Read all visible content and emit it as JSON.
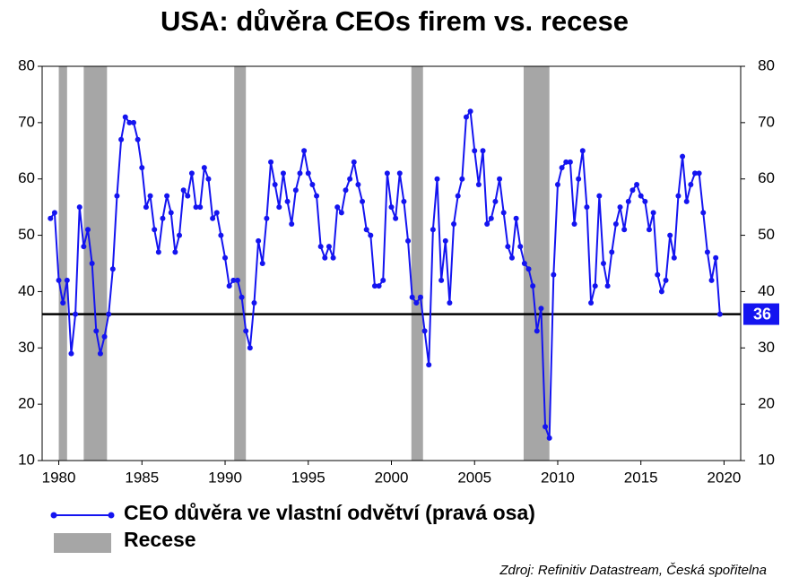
{
  "chart_data": {
    "type": "line",
    "title": "USA: důvěra CEOs firem vs. recese",
    "x": [
      1979.5,
      1979.75,
      1980,
      1980.25,
      1980.5,
      1980.75,
      1981,
      1981.25,
      1981.5,
      1981.75,
      1982,
      1982.25,
      1982.5,
      1982.75,
      1983,
      1983.25,
      1983.5,
      1983.75,
      1984,
      1984.25,
      1984.5,
      1984.75,
      1985,
      1985.25,
      1985.5,
      1985.75,
      1986,
      1986.25,
      1986.5,
      1986.75,
      1987,
      1987.25,
      1987.5,
      1987.75,
      1988,
      1988.25,
      1988.5,
      1988.75,
      1989,
      1989.25,
      1989.5,
      1989.75,
      1990,
      1990.25,
      1990.5,
      1990.75,
      1991,
      1991.25,
      1991.5,
      1991.75,
      1992,
      1992.25,
      1992.5,
      1992.75,
      1993,
      1993.25,
      1993.5,
      1993.75,
      1994,
      1994.25,
      1994.5,
      1994.75,
      1995,
      1995.25,
      1995.5,
      1995.75,
      1996,
      1996.25,
      1996.5,
      1996.75,
      1997,
      1997.25,
      1997.5,
      1997.75,
      1998,
      1998.25,
      1998.5,
      1998.75,
      1999,
      1999.25,
      1999.5,
      1999.75,
      2000,
      2000.25,
      2000.5,
      2000.75,
      2001,
      2001.25,
      2001.5,
      2001.75,
      2002,
      2002.25,
      2002.5,
      2002.75,
      2003,
      2003.25,
      2003.5,
      2003.75,
      2004,
      2004.25,
      2004.5,
      2004.75,
      2005,
      2005.25,
      2005.5,
      2005.75,
      2006,
      2006.25,
      2006.5,
      2006.75,
      2007,
      2007.25,
      2007.5,
      2007.75,
      2008,
      2008.25,
      2008.5,
      2008.75,
      2009,
      2009.25,
      2009.5,
      2009.75,
      2010,
      2010.25,
      2010.5,
      2010.75,
      2011,
      2011.25,
      2011.5,
      2011.75,
      2012,
      2012.25,
      2012.5,
      2012.75,
      2013,
      2013.25,
      2013.5,
      2013.75,
      2014,
      2014.25,
      2014.5,
      2014.75,
      2015,
      2015.25,
      2015.5,
      2015.75,
      2016,
      2016.25,
      2016.5,
      2016.75,
      2017,
      2017.25,
      2017.5,
      2017.75,
      2018,
      2018.25,
      2018.5,
      2018.75,
      2019,
      2019.25,
      2019.5,
      2019.75
    ],
    "series": [
      {
        "name": "CEO důvěra ve vlastní odvětví (pravá osa)",
        "color": "#1414f0",
        "axis": "y2",
        "values": [
          53,
          54,
          42,
          38,
          42,
          29,
          36,
          55,
          48,
          51,
          45,
          33,
          29,
          32,
          36,
          44,
          57,
          67,
          71,
          70,
          70,
          67,
          62,
          55,
          57,
          51,
          47,
          53,
          57,
          54,
          47,
          50,
          58,
          57,
          61,
          55,
          55,
          62,
          60,
          53,
          54,
          50,
          46,
          41,
          42,
          42,
          39,
          33,
          30,
          38,
          49,
          45,
          53,
          63,
          59,
          55,
          61,
          56,
          52,
          58,
          61,
          65,
          61,
          59,
          57,
          48,
          46,
          48,
          46,
          55,
          54,
          58,
          60,
          63,
          59,
          56,
          51,
          50,
          41,
          41,
          42,
          61,
          55,
          53,
          61,
          56,
          49,
          39,
          38,
          39,
          33,
          27,
          51,
          60,
          42,
          49,
          38,
          52,
          57,
          60,
          71,
          72,
          65,
          59,
          65,
          52,
          53,
          56,
          60,
          54,
          48,
          46,
          53,
          48,
          45,
          44,
          41,
          33,
          37,
          16,
          14,
          43,
          59,
          62,
          63,
          63,
          52,
          60,
          65,
          55,
          38,
          41,
          57,
          45,
          41,
          47,
          52,
          55,
          51,
          56,
          58,
          59,
          57,
          56,
          51,
          54,
          43,
          40,
          42,
          50,
          46,
          57,
          64,
          56,
          59,
          61,
          61,
          54,
          47,
          42,
          46,
          36
        ]
      }
    ],
    "recessions": {
      "name": "Recese",
      "color": "#a6a6a6",
      "periods": [
        [
          1980,
          1980.5
        ],
        [
          1981.5,
          1982.9
        ],
        [
          1990.55,
          1991.25
        ],
        [
          2001.2,
          2001.9
        ],
        [
          2007.95,
          2009.5
        ]
      ]
    },
    "reference_line": 36,
    "xlim": [
      1979,
      2021
    ],
    "xticks": [
      1980,
      1985,
      1990,
      1995,
      2000,
      2005,
      2010,
      2015,
      2020
    ],
    "ylim": [
      10,
      80
    ],
    "yticks": [
      10,
      20,
      30,
      40,
      50,
      60,
      70,
      80
    ],
    "y2lim": [
      10,
      80
    ],
    "y2ticks": [
      10,
      20,
      30,
      40,
      50,
      60,
      70,
      80
    ],
    "source": "Zdroj: Refinitiv Datastream, Česká spořitelna"
  }
}
